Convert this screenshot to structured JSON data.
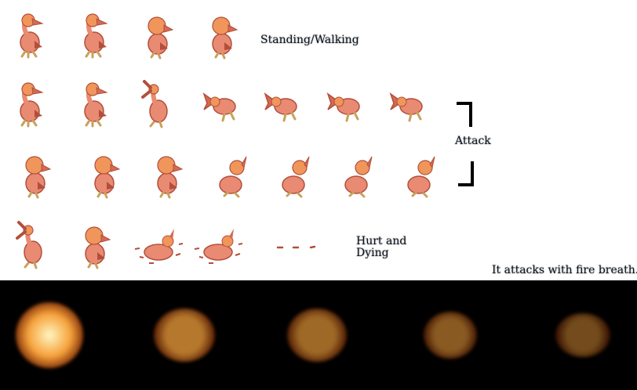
{
  "labels": {
    "standing_walking": "Standing/Walking",
    "attack": "Attack",
    "hurt_line1": "Hurt and",
    "hurt_line2": "Dying",
    "note": "It attacks with fire breath."
  },
  "colors": {
    "background": "#ffffff",
    "fire_strip": "#000000",
    "body": "#e98a72",
    "body_shadow": "#b24f3c",
    "head": "#f0965a",
    "beak": "#d56a52",
    "feet": "#c9a15a",
    "fire_core": "#fff6c2",
    "fire_mid": "#f6a23c",
    "fire_edge": "#7a2a05"
  },
  "rows": [
    {
      "name": "standing-walking",
      "frame_count": 4
    },
    {
      "name": "attack-part-1",
      "frame_count": 7
    },
    {
      "name": "attack-part-2",
      "frame_count": 7
    },
    {
      "name": "hurt-and-dying",
      "frame_count": 5
    }
  ],
  "fire_frames": [
    {
      "intensity": 1.0
    },
    {
      "intensity": 0.6
    },
    {
      "intensity": 0.45
    },
    {
      "intensity": 0.32
    },
    {
      "intensity": 0.18
    }
  ]
}
